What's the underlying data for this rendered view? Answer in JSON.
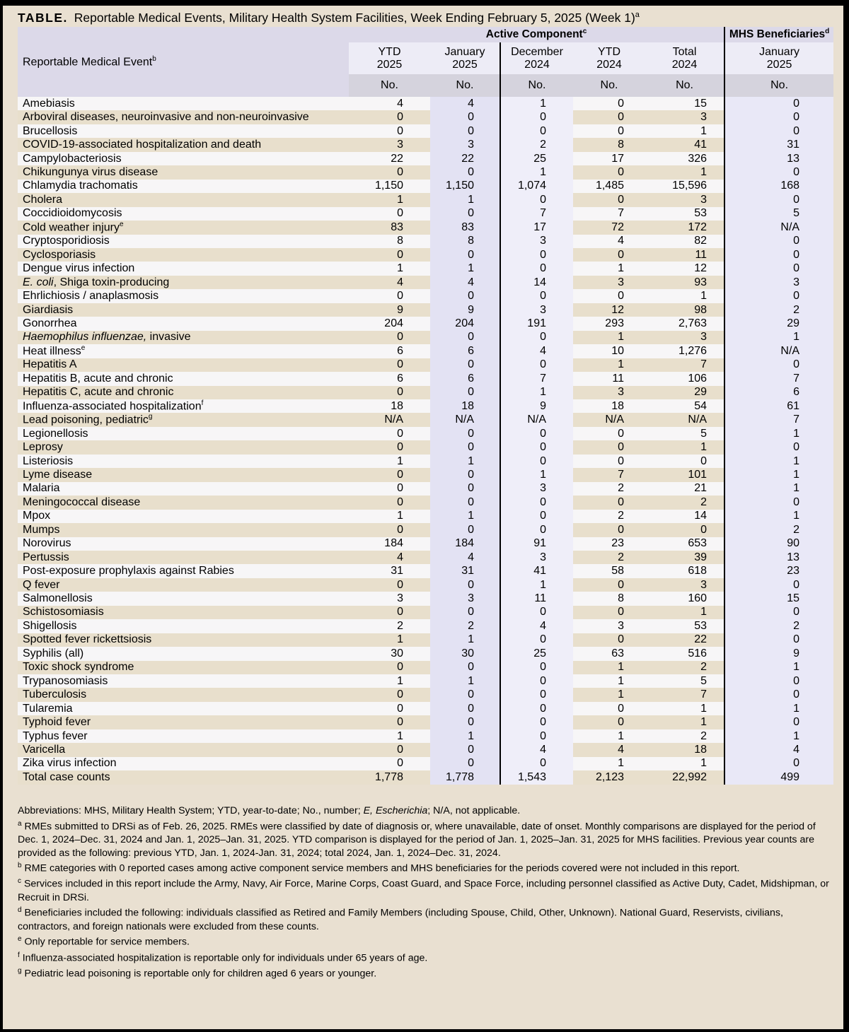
{
  "page": {
    "title_label": "TABLE.",
    "title_text": " Reportable Medical Events, Military Health System Facilities, Week Ending February 5, 2025 (Week 1)",
    "title_sup": "a"
  },
  "table": {
    "row_header": {
      "text": "Reportable Medical Event",
      "sup": "b"
    },
    "groups": [
      {
        "id": "active-component",
        "label": "Active Component",
        "sup": "c"
      },
      {
        "id": "mhs-beneficiaries",
        "label": "MHS Beneficiaries",
        "sup": "d"
      }
    ],
    "columns": [
      {
        "id": "ytd-2025",
        "line1": "YTD",
        "line2": "2025",
        "unit": "No.",
        "sep": false
      },
      {
        "id": "january-2025",
        "line1": "January",
        "line2": "2025",
        "unit": "No.",
        "sep": false
      },
      {
        "id": "december-2024",
        "line1": "December",
        "line2": "2024",
        "unit": "No.",
        "sep": true
      },
      {
        "id": "ytd-2024",
        "line1": "YTD",
        "line2": "2024",
        "unit": "No.",
        "sep": false
      },
      {
        "id": "total-2024",
        "line1": "Total",
        "line2": "2024",
        "unit": "No.",
        "sep": false
      },
      {
        "id": "mhs-january-2025",
        "line1": "January",
        "line2": "2025",
        "unit": "No.",
        "sep": true
      }
    ],
    "rows": [
      {
        "t": "Amebiasis",
        "v": [
          "4",
          "4",
          "1",
          "0",
          "15",
          "0"
        ]
      },
      {
        "t": "Arboviral diseases, neuroinvasive and non-neuroinvasive",
        "v": [
          "0",
          "0",
          "0",
          "0",
          "3",
          "0"
        ]
      },
      {
        "t": "Brucellosis",
        "v": [
          "0",
          "0",
          "0",
          "0",
          "1",
          "0"
        ]
      },
      {
        "t": "COVID-19-associated hospitalization and death",
        "v": [
          "3",
          "3",
          "2",
          "8",
          "41",
          "31"
        ]
      },
      {
        "t": "Campylobacteriosis",
        "v": [
          "22",
          "22",
          "25",
          "17",
          "326",
          "13"
        ]
      },
      {
        "t": "Chikungunya virus disease",
        "v": [
          "0",
          "0",
          "1",
          "0",
          "1",
          "0"
        ]
      },
      {
        "t": "Chlamydia trachomatis",
        "v": [
          "1,150",
          "1,150",
          "1,074",
          "1,485",
          "15,596",
          "168"
        ]
      },
      {
        "t": "Cholera",
        "v": [
          "1",
          "1",
          "0",
          "0",
          "3",
          "0"
        ]
      },
      {
        "t": "Coccidioidomycosis",
        "v": [
          "0",
          "0",
          "7",
          "7",
          "53",
          "5"
        ]
      },
      {
        "t": "Cold weather injury",
        "sup": "e",
        "v": [
          "83",
          "83",
          "17",
          "72",
          "172",
          "N/A"
        ]
      },
      {
        "t": "Cryptosporidiosis",
        "v": [
          "8",
          "8",
          "3",
          "4",
          "82",
          "0"
        ]
      },
      {
        "t": "Cyclosporiasis",
        "v": [
          "0",
          "0",
          "0",
          "0",
          "11",
          "0"
        ]
      },
      {
        "t": "Dengue virus infection",
        "v": [
          "1",
          "1",
          "0",
          "1",
          "12",
          "0"
        ]
      },
      {
        "i": "E. coli",
        "t": ", Shiga toxin-producing",
        "v": [
          "4",
          "4",
          "14",
          "3",
          "93",
          "3"
        ]
      },
      {
        "t": "Ehrlichiosis / anaplasmosis",
        "v": [
          "0",
          "0",
          "0",
          "0",
          "1",
          "0"
        ]
      },
      {
        "t": "Giardiasis",
        "v": [
          "9",
          "9",
          "3",
          "12",
          "98",
          "2"
        ]
      },
      {
        "t": "Gonorrhea",
        "v": [
          "204",
          "204",
          "191",
          "293",
          "2,763",
          "29"
        ]
      },
      {
        "i": "Haemophilus influenzae,",
        "t": " invasive",
        "v": [
          "0",
          "0",
          "0",
          "1",
          "3",
          "1"
        ]
      },
      {
        "t": "Heat illness",
        "sup": "e",
        "v": [
          "6",
          "6",
          "4",
          "10",
          "1,276",
          "N/A"
        ]
      },
      {
        "t": "Hepatitis A",
        "v": [
          "0",
          "0",
          "0",
          "1",
          "7",
          "0"
        ]
      },
      {
        "t": "Hepatitis B, acute and chronic",
        "v": [
          "6",
          "6",
          "7",
          "11",
          "106",
          "7"
        ]
      },
      {
        "t": "Hepatitis C, acute and chronic",
        "v": [
          "0",
          "0",
          "1",
          "3",
          "29",
          "6"
        ]
      },
      {
        "t": "Influenza-associated hospitalization",
        "sup": "f",
        "v": [
          "18",
          "18",
          "9",
          "18",
          "54",
          "61"
        ]
      },
      {
        "t": "Lead poisoning, pediatric",
        "sup": "g",
        "v": [
          "N/A",
          "N/A",
          "N/A",
          "N/A",
          "N/A",
          "7"
        ]
      },
      {
        "t": "Legionellosis",
        "v": [
          "0",
          "0",
          "0",
          "0",
          "5",
          "1"
        ]
      },
      {
        "t": "Leprosy",
        "v": [
          "0",
          "0",
          "0",
          "0",
          "1",
          "0"
        ]
      },
      {
        "t": "Listeriosis",
        "v": [
          "1",
          "1",
          "0",
          "0",
          "0",
          "1"
        ]
      },
      {
        "t": "Lyme disease",
        "v": [
          "0",
          "0",
          "1",
          "7",
          "101",
          "1"
        ]
      },
      {
        "t": "Malaria",
        "v": [
          "0",
          "0",
          "3",
          "2",
          "21",
          "1"
        ]
      },
      {
        "t": "Meningococcal disease",
        "v": [
          "0",
          "0",
          "0",
          "0",
          "2",
          "0"
        ]
      },
      {
        "t": "Mpox",
        "v": [
          "1",
          "1",
          "0",
          "2",
          "14",
          "1"
        ]
      },
      {
        "t": "Mumps",
        "v": [
          "0",
          "0",
          "0",
          "0",
          "0",
          "2"
        ]
      },
      {
        "t": "Norovirus",
        "v": [
          "184",
          "184",
          "91",
          "23",
          "653",
          "90"
        ]
      },
      {
        "t": "Pertussis",
        "v": [
          "4",
          "4",
          "3",
          "2",
          "39",
          "13"
        ]
      },
      {
        "t": "Post-exposure prophylaxis against Rabies",
        "v": [
          "31",
          "31",
          "41",
          "58",
          "618",
          "23"
        ]
      },
      {
        "t": "Q fever",
        "v": [
          "0",
          "0",
          "1",
          "0",
          "3",
          "0"
        ]
      },
      {
        "t": "Salmonellosis",
        "v": [
          "3",
          "3",
          "11",
          "8",
          "160",
          "15"
        ]
      },
      {
        "t": "Schistosomiasis",
        "v": [
          "0",
          "0",
          "0",
          "0",
          "1",
          "0"
        ]
      },
      {
        "t": "Shigellosis",
        "v": [
          "2",
          "2",
          "4",
          "3",
          "53",
          "2"
        ]
      },
      {
        "t": "Spotted fever rickettsiosis",
        "v": [
          "1",
          "1",
          "0",
          "0",
          "22",
          "0"
        ]
      },
      {
        "t": "Syphilis (all)",
        "v": [
          "30",
          "30",
          "25",
          "63",
          "516",
          "9"
        ]
      },
      {
        "t": "Toxic shock syndrome",
        "v": [
          "0",
          "0",
          "0",
          "1",
          "2",
          "1"
        ]
      },
      {
        "t": "Trypanosomiasis",
        "v": [
          "1",
          "1",
          "0",
          "1",
          "5",
          "0"
        ]
      },
      {
        "t": "Tuberculosis",
        "v": [
          "0",
          "0",
          "0",
          "1",
          "7",
          "0"
        ]
      },
      {
        "t": "Tularemia",
        "v": [
          "0",
          "0",
          "0",
          "0",
          "1",
          "1"
        ]
      },
      {
        "t": "Typhoid fever",
        "v": [
          "0",
          "0",
          "0",
          "0",
          "1",
          "0"
        ]
      },
      {
        "t": "Typhus fever",
        "v": [
          "1",
          "1",
          "0",
          "1",
          "2",
          "1"
        ]
      },
      {
        "t": "Varicella",
        "v": [
          "0",
          "0",
          "4",
          "4",
          "18",
          "4"
        ]
      },
      {
        "t": "Zika virus infection",
        "v": [
          "0",
          "0",
          "0",
          "1",
          "1",
          "0"
        ]
      },
      {
        "t": "Total case counts",
        "v": [
          "1,778",
          "1,778",
          "1,543",
          "2,123",
          "22,992",
          "499"
        ]
      }
    ]
  },
  "footnotes": [
    {
      "sup": "",
      "seg": [
        {
          "text": "Abbreviations: MHS, Military Health System; YTD, year-to-date; No., number; "
        },
        {
          "text": "E, Escherichia",
          "italic": true
        },
        {
          "text": "; N/A, not applicable."
        }
      ]
    },
    {
      "sup": "a",
      "seg": [
        {
          "text": "RMEs submitted to DRSi as of Feb. 26, 2025. RMEs were classified by date of diagnosis or, where unavailable, date of onset. Monthly comparisons are displayed for the period of Dec. 1, 2024–Dec. 31, 2024 and Jan. 1, 2025–Jan. 31, 2025. YTD comparison is displayed for the period of Jan. 1, 2025–Jan. 31, 2025 for MHS facilities. Previous year counts are provided as the following: previous YTD, Jan. 1, 2024-Jan. 31, 2024; total 2024, Jan. 1, 2024–Dec. 31, 2024."
        }
      ]
    },
    {
      "sup": "b",
      "seg": [
        {
          "text": "RME categories with 0 reported cases among active component service members and MHS beneficiaries for the periods covered were not included in this report."
        }
      ]
    },
    {
      "sup": "c",
      "seg": [
        {
          "text": "Services included in this report include the Army, Navy, Air Force, Marine Corps, Coast Guard, and Space Force, including personnel classified as Active Duty, Cadet, Midshipman, or  Recruit in DRSi."
        }
      ]
    },
    {
      "sup": "d",
      "seg": [
        {
          "text": "Beneficiaries included the following: individuals classified as Retired and Family Members (including Spouse, Child, Other, Unknown). National Guard, Reservists, civilians, contractors, and foreign nationals were excluded from these counts."
        }
      ]
    },
    {
      "sup": "e",
      "seg": [
        {
          "text": "Only reportable for service members."
        }
      ]
    },
    {
      "sup": "f",
      "seg": [
        {
          "text": "Influenza-associated hospitalization is reportable only for individuals under 65 years of age."
        }
      ]
    },
    {
      "sup": "g",
      "seg": [
        {
          "text": "Pediatric lead poisoning is reportable only for children aged 6 years or younger."
        }
      ]
    }
  ]
}
